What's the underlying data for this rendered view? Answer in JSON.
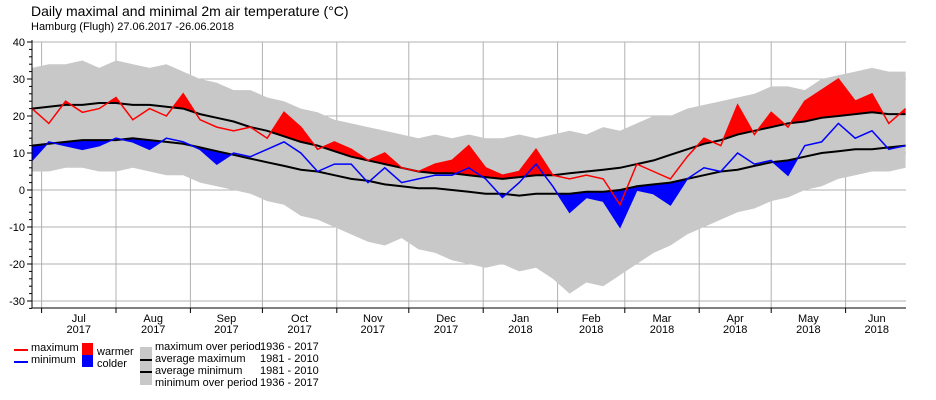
{
  "chart_data": {
    "type": "line",
    "title": "Daily maximal and minimal 2m air temperature (°C)",
    "subtitle": "Hamburg (Flugh)  27.06.2017 -26.06.2018",
    "ylim": [
      -32,
      40
    ],
    "yticks": [
      -30,
      -20,
      -10,
      0,
      10,
      20,
      30,
      40
    ],
    "sampling": "weekly from 27.06.2017",
    "month_labels": [
      [
        "Jul",
        "2017"
      ],
      [
        "Aug",
        "2017"
      ],
      [
        "Sep",
        "2017"
      ],
      [
        "Oct",
        "2017"
      ],
      [
        "Nov",
        "2017"
      ],
      [
        "Dec",
        "2017"
      ],
      [
        "Jan",
        "2018"
      ],
      [
        "Feb",
        "2018"
      ],
      [
        "Mar",
        "2018"
      ],
      [
        "Apr",
        "2018"
      ],
      [
        "May",
        "2018"
      ],
      [
        "Jun",
        "2018"
      ]
    ],
    "series": {
      "maximum": [
        22,
        18,
        24,
        21,
        22,
        25,
        19,
        22,
        20,
        26,
        19,
        17,
        16,
        17,
        14,
        21,
        17,
        11,
        13,
        11,
        8,
        10,
        6,
        5,
        7,
        8,
        12,
        6,
        4,
        5,
        11,
        4,
        3,
        4,
        3,
        -4,
        7,
        5,
        3,
        9,
        14,
        12,
        23,
        15,
        21,
        17,
        24,
        27,
        30,
        24,
        26,
        18,
        22
      ],
      "minimum": [
        8,
        13,
        12,
        11,
        12,
        14,
        13,
        11,
        14,
        13,
        11,
        7,
        10,
        9,
        11,
        13,
        10,
        5,
        7,
        7,
        2,
        6,
        2,
        3,
        4,
        4,
        6,
        3,
        -2,
        2,
        7,
        1,
        -6,
        -2,
        -3,
        -10,
        0,
        -1,
        -4,
        3,
        6,
        5,
        10,
        7,
        8,
        4,
        12,
        13,
        18,
        14,
        16,
        11,
        12
      ],
      "average_maximum": [
        22,
        22.5,
        23,
        23,
        23.5,
        23.5,
        23,
        23,
        22.5,
        22,
        20.5,
        19.5,
        18.5,
        17,
        16,
        14.5,
        13,
        12,
        10.5,
        9,
        8,
        7,
        6,
        5,
        4.5,
        4.5,
        4,
        3.5,
        3,
        3.5,
        4,
        4,
        4.5,
        5,
        5.5,
        6,
        7,
        8,
        9.5,
        11,
        12.5,
        13.5,
        15,
        16,
        17,
        18,
        18.5,
        19.5,
        20,
        20.5,
        21,
        20.5,
        20.5
      ],
      "average_minimum": [
        12,
        12.5,
        13,
        13.5,
        13.5,
        13.5,
        14,
        13.5,
        13,
        12.5,
        11.5,
        10.5,
        9.5,
        8.5,
        7.5,
        6.5,
        5.5,
        5,
        4,
        3,
        2.5,
        1.5,
        1,
        0.5,
        0.5,
        0,
        -0.5,
        -1,
        -1,
        -1.5,
        -1,
        -1,
        -1,
        -0.5,
        -0.5,
        0,
        1,
        1.5,
        2,
        3,
        4,
        5,
        5.5,
        6.5,
        7.5,
        8,
        9,
        10,
        10.5,
        11,
        11,
        11.5,
        12
      ],
      "maximum_over_period": [
        33,
        34,
        34,
        35,
        33,
        35,
        34,
        33,
        34,
        32,
        30,
        29,
        27,
        27,
        25,
        24,
        22,
        21,
        19,
        18,
        17,
        16,
        15,
        14,
        15,
        14,
        15,
        14,
        14,
        15,
        14,
        15,
        16,
        15,
        17,
        16,
        18,
        20,
        20,
        22,
        23,
        24,
        25,
        26,
        28,
        28,
        27,
        30,
        31,
        32,
        33,
        32,
        32
      ],
      "minimum_over_period": [
        5,
        5,
        6,
        6,
        5,
        5,
        6,
        5,
        4,
        4,
        2,
        1,
        0,
        -1,
        -3,
        -4,
        -7,
        -8,
        -10,
        -12,
        -14,
        -15,
        -13,
        -16,
        -17,
        -19,
        -20,
        -21,
        -20,
        -22,
        -21,
        -24,
        -28,
        -25,
        -26,
        -23,
        -20,
        -17,
        -15,
        -12,
        -10,
        -8,
        -6,
        -5,
        -3,
        -2,
        0,
        1,
        3,
        4,
        5,
        5,
        6
      ]
    },
    "colors": {
      "maximum": "#ff0000",
      "minimum": "#0000ff",
      "warmer": "#ff0000",
      "colder": "#0000ff",
      "range": "#c8c8c8",
      "average": "#000000",
      "grid": "#b0b0b0"
    },
    "legend": {
      "maximum": "maximum",
      "minimum": "minimum",
      "warmer": "warmer",
      "colder": "colder",
      "rows": [
        [
          "maximum over period",
          "1936 - 2017"
        ],
        [
          "average maximum",
          "1981 - 2010"
        ],
        [
          "average minimum",
          "1981 - 2010"
        ],
        [
          "minimum over period",
          "1936 - 2017"
        ]
      ]
    }
  }
}
